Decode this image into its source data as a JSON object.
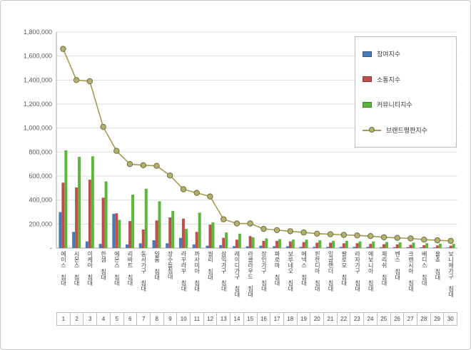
{
  "chart_data": {
    "type": "bar",
    "subtype": "grouped-bars-with-line-overlay",
    "title": "",
    "xlabel": "",
    "ylabel": "",
    "ylim": [
      0,
      1800000
    ],
    "ytick_step": 200000,
    "ytick_labels": [
      "1,800,000",
      "1,600,000",
      "1,400,000",
      "1,200,000",
      "1,000,000",
      "800,000",
      "600,000",
      "400,000",
      "200,000",
      "-"
    ],
    "grid": true,
    "legend_position": "top-right",
    "gridline_color": "#dcdcdc",
    "axis_color": "#a6a6a6",
    "tick_label_color": "#595959",
    "categories": [
      "에이스 침대",
      "시몬스 침대",
      "이케아 침대",
      "한샘 침대",
      "에몬스 침대",
      "리바트 침대",
      "동서가구 침대",
      "일룸 침대",
      "장수돌침대",
      "라꾸라꾸 침대",
      "까사미아 침대",
      "씰리 침대",
      "삼익가구 침대",
      "레이디가구 침대",
      "라클라우드 침대",
      "장인가구 침대",
      "파로마 침대",
      "보루네오 침대",
      "에넥스 침대",
      "핀란디아 침대",
      "잉글랜더 침대",
      "팔로모 침대",
      "라자가구 침대",
      "에보니아 침대",
      "체리쉬 침대",
      "벤스 침대",
      "크렌시아 침대",
      "베디스 침대",
      "욜쵸 침대",
      "보니애가구 침대"
    ],
    "category_ranks": [
      "1",
      "2",
      "3",
      "4",
      "5",
      "6",
      "7",
      "8",
      "9",
      "10",
      "11",
      "12",
      "13",
      "14",
      "15",
      "16",
      "17",
      "18",
      "19",
      "20",
      "21",
      "22",
      "23",
      "24",
      "25",
      "26",
      "27",
      "28",
      "29",
      "30"
    ],
    "series": [
      {
        "name": "참여지수",
        "type": "bar",
        "color": "#4a7ab5",
        "values": [
          300000,
          135000,
          55000,
          35000,
          285000,
          30000,
          40000,
          65000,
          40000,
          85000,
          30000,
          20000,
          25000,
          15000,
          15000,
          20000,
          15000,
          15000,
          10000,
          10000,
          10000,
          10000,
          10000,
          10000,
          8000,
          8000,
          8000,
          6000,
          6000,
          5000
        ]
      },
      {
        "name": "소통지수",
        "type": "bar",
        "color": "#c0504d",
        "values": [
          545000,
          505000,
          570000,
          420000,
          290000,
          225000,
          155000,
          230000,
          255000,
          245000,
          135000,
          195000,
          85000,
          70000,
          100000,
          60000,
          60000,
          55000,
          50000,
          45000,
          45000,
          40000,
          40000,
          35000,
          32000,
          30000,
          27000,
          24000,
          22000,
          20000
        ]
      },
      {
        "name": "커뮤니티지수",
        "type": "bar",
        "color": "#5db53c",
        "values": [
          815000,
          760000,
          765000,
          555000,
          235000,
          445000,
          495000,
          390000,
          310000,
          160000,
          295000,
          215000,
          130000,
          120000,
          90000,
          80000,
          75000,
          70000,
          70000,
          65000,
          60000,
          60000,
          55000,
          55000,
          50000,
          47000,
          45000,
          40000,
          37000,
          35000
        ]
      },
      {
        "name": "브랜드평판지수",
        "type": "line",
        "color": "#a09d52",
        "marker_fill": "#b3b075",
        "marker_stroke": "#6e6c35",
        "values": [
          1660000,
          1400000,
          1390000,
          1010000,
          810000,
          700000,
          690000,
          685000,
          605000,
          490000,
          460000,
          430000,
          240000,
          205000,
          205000,
          160000,
          150000,
          140000,
          130000,
          120000,
          115000,
          110000,
          105000,
          100000,
          90000,
          85000,
          80000,
          70000,
          65000,
          60000
        ]
      }
    ]
  }
}
